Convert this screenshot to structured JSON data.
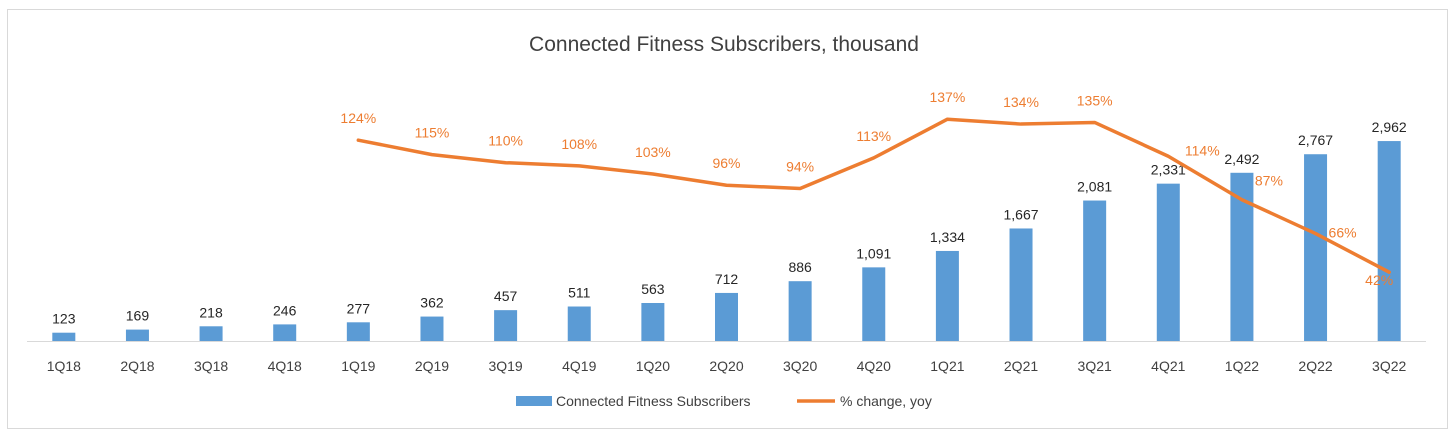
{
  "chart_data": {
    "type": "bar",
    "title": "Connected Fitness Subscribers, thousand",
    "categories": [
      "1Q18",
      "2Q18",
      "3Q18",
      "4Q18",
      "1Q19",
      "2Q19",
      "3Q19",
      "4Q19",
      "1Q20",
      "2Q20",
      "3Q20",
      "4Q20",
      "1Q21",
      "2Q21",
      "3Q21",
      "4Q21",
      "1Q22",
      "2Q22",
      "3Q22"
    ],
    "series": [
      {
        "name": "Connected Fitness Subscribers",
        "type": "bar",
        "color": "#5b9bd5",
        "values": [
          123,
          169,
          218,
          246,
          277,
          362,
          457,
          511,
          563,
          712,
          886,
          1091,
          1334,
          1667,
          2081,
          2331,
          2492,
          2767,
          2962
        ],
        "labels": [
          "123",
          "169",
          "218",
          "246",
          "277",
          "362",
          "457",
          "511",
          "563",
          "712",
          "886",
          "1,091",
          "1,334",
          "1,667",
          "2,081",
          "2,331",
          "2,492",
          "2,767",
          "2,962"
        ]
      },
      {
        "name": "% change, yoy",
        "type": "line",
        "color": "#ed7d31",
        "values": [
          null,
          null,
          null,
          null,
          124,
          115,
          110,
          108,
          103,
          96,
          94,
          113,
          137,
          134,
          135,
          114,
          87,
          66,
          42
        ],
        "labels": [
          "",
          "",
          "",
          "",
          "124%",
          "115%",
          "110%",
          "108%",
          "103%",
          "96%",
          "94%",
          "113%",
          "137%",
          "134%",
          "135%",
          "114%",
          "87%",
          "66%",
          "42%"
        ]
      }
    ],
    "ylim": [
      0,
      3500
    ],
    "y2lim": [
      0,
      150
    ],
    "xlabel": "",
    "ylabel": "",
    "legend": "bottom"
  }
}
